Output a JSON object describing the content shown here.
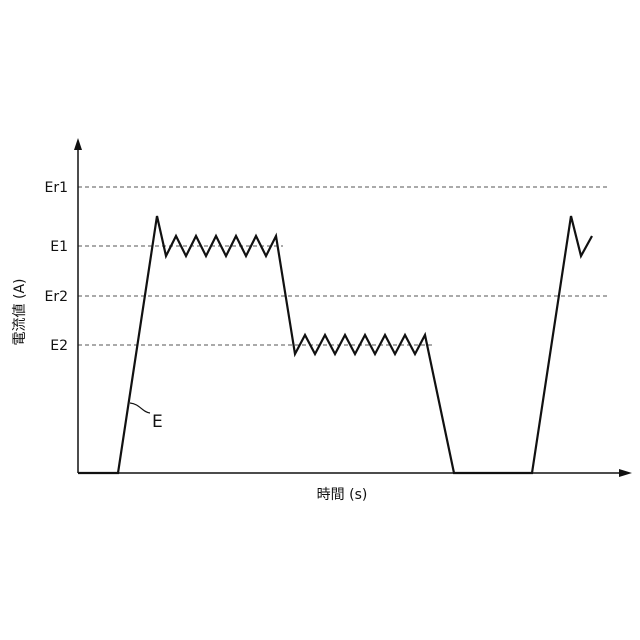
{
  "chart_data": {
    "type": "line",
    "title": "",
    "xlabel": "時間 (s)",
    "ylabel": "電流値 (A)",
    "reference_levels": [
      {
        "label": "Er1",
        "style": "dashed"
      },
      {
        "label": "E1",
        "style": "dashed"
      },
      {
        "label": "Er2",
        "style": "dashed"
      },
      {
        "label": "E2",
        "style": "dashed"
      }
    ],
    "series": [
      {
        "name": "E",
        "color": "#111111",
        "description_label": "E"
      }
    ],
    "grid": false,
    "legend": "none"
  }
}
